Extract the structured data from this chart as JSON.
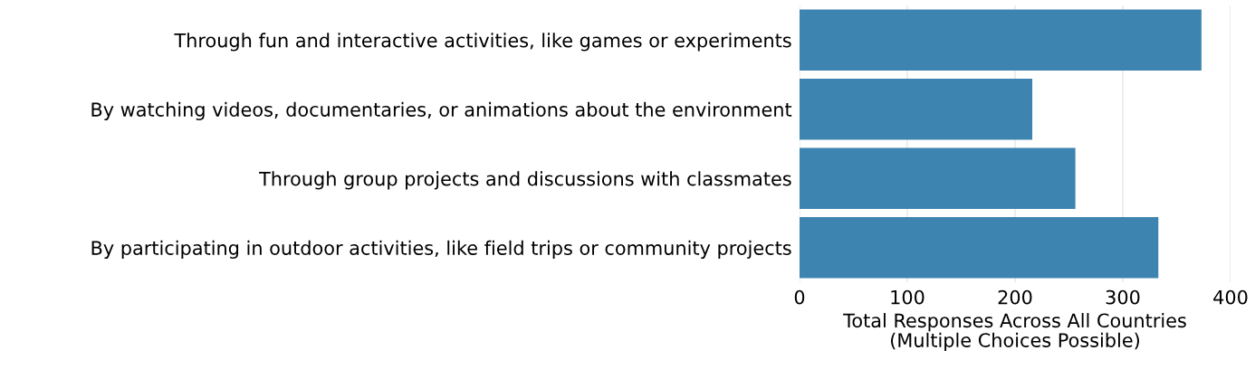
{
  "chart_data": {
    "type": "bar",
    "orientation": "horizontal",
    "categories": [
      "Through fun and interactive activities, like games or experiments",
      "By watching videos, documentaries, or animations about the environment",
      "Through group projects and discussions with classmates",
      "By participating in outdoor activities, like field trips or community projects"
    ],
    "values": [
      373,
      216,
      256,
      333
    ],
    "color": "#3e84b0",
    "xlabel": "Total Responses Across All Countries\n(Multiple Choices Possible)",
    "xlim": [
      0,
      400
    ],
    "xticks": [
      0,
      100,
      200,
      300,
      400
    ],
    "grid": "x"
  }
}
